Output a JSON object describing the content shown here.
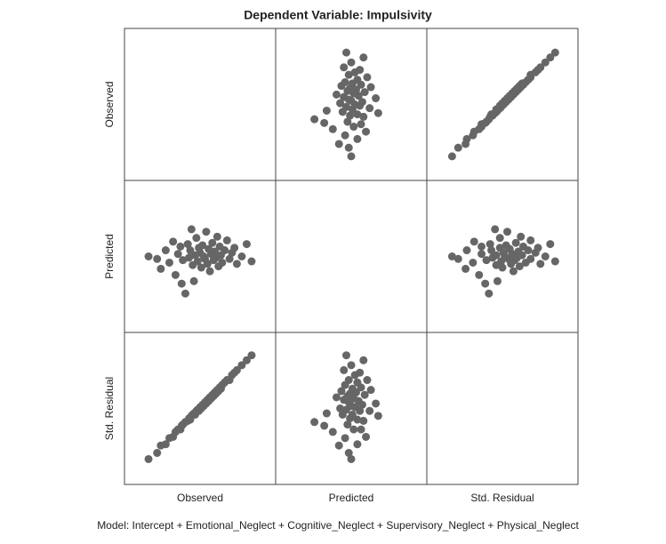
{
  "chart_data": {
    "type": "scatter-matrix",
    "title": "Dependent Variable: Impulsivity",
    "footnote": "Model: Intercept + Emotional_Neglect + Cognitive_Neglect + Supervisory_Neglect + Physical_Neglect",
    "xlim": [
      0,
      100
    ],
    "ylim": [
      0,
      100
    ],
    "color": "#666666",
    "variables": [
      {
        "name": "Observed",
        "values": [
          8,
          15,
          18,
          22,
          25,
          28,
          30,
          32,
          34,
          36,
          38,
          40,
          41,
          42,
          44,
          45,
          46,
          47,
          48,
          49,
          50,
          51,
          52,
          53,
          54,
          55,
          56,
          57,
          58,
          59,
          60,
          61,
          62,
          63,
          64,
          65,
          66,
          67,
          68,
          70,
          72,
          74,
          76,
          78,
          80,
          84,
          88,
          92,
          35,
          43
        ]
      },
      {
        "name": "Predicted",
        "values": [
          50,
          48,
          40,
          55,
          45,
          62,
          35,
          52,
          58,
          47,
          20,
          60,
          49,
          55,
          43,
          30,
          51,
          65,
          46,
          57,
          53,
          41,
          59,
          50,
          48,
          70,
          44,
          56,
          38,
          52,
          61,
          47,
          54,
          49,
          66,
          42,
          58,
          51,
          45,
          55,
          63,
          48,
          53,
          57,
          44,
          50,
          60,
          46,
          28,
          72
        ]
      },
      {
        "name": "Std. Residual",
        "values": [
          9,
          14,
          20,
          21,
          26,
          27,
          31,
          33,
          33,
          37,
          39,
          40,
          42,
          41,
          45,
          46,
          45,
          48,
          49,
          48,
          51,
          50,
          53,
          52,
          55,
          54,
          57,
          56,
          59,
          58,
          61,
          60,
          63,
          62,
          65,
          64,
          67,
          66,
          69,
          71,
          73,
          73,
          77,
          79,
          81,
          85,
          89,
          93,
          36,
          44
        ]
      }
    ]
  }
}
